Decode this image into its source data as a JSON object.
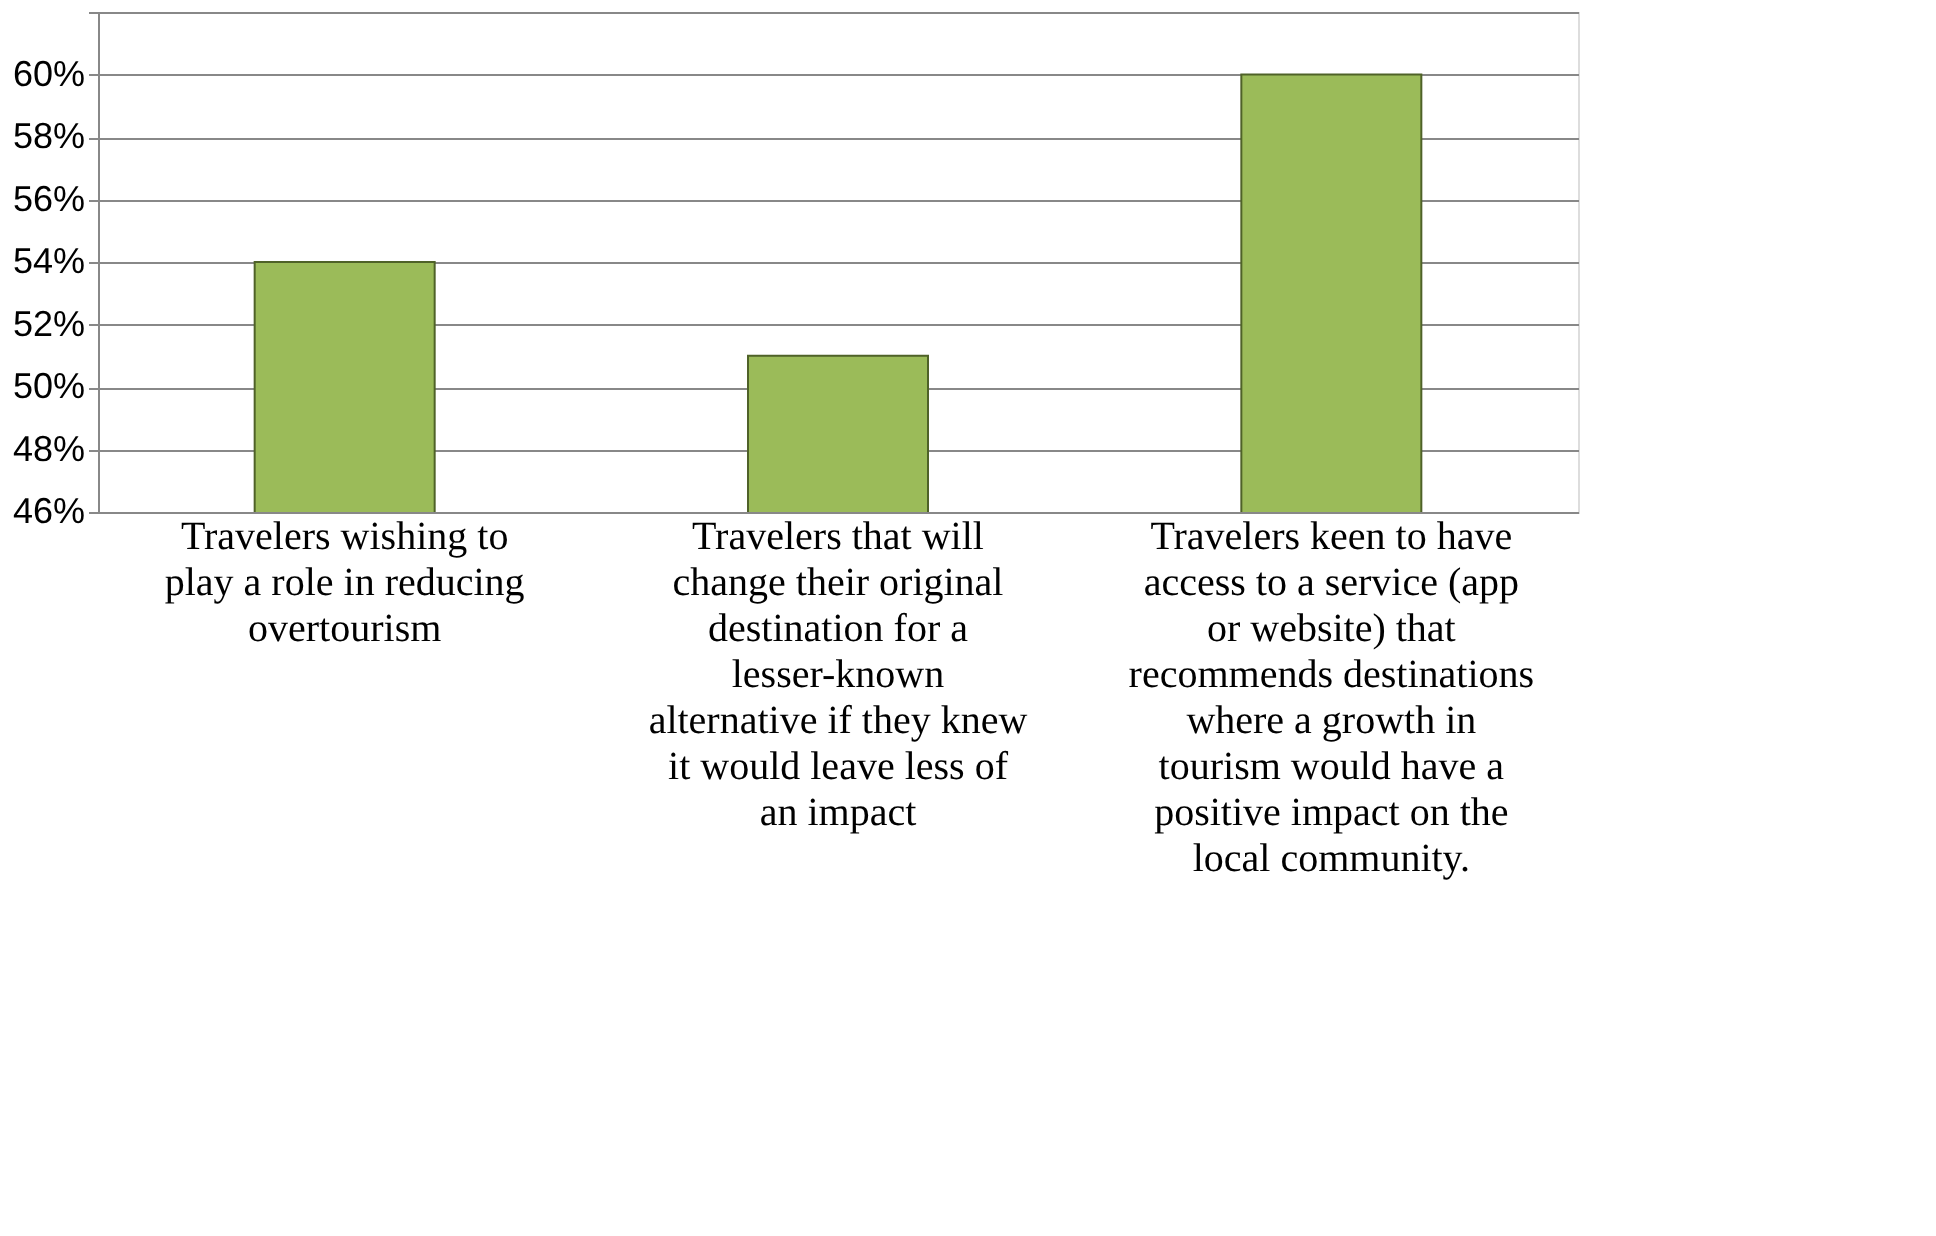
{
  "chart_data": {
    "type": "bar",
    "categories": [
      "Travelers wishing to play a role in reducing overtourism",
      "Travelers that will change their original destination for a lesser-known  alternative if they knew it would leave less of an impact",
      "Travelers keen to have access to a service (app or website) that recommends destinations where a growth in tourism would have a positive impact on the local community."
    ],
    "values": [
      54,
      51,
      60
    ],
    "color": "#9bbb59",
    "ylim": [
      46,
      62
    ],
    "yticks": [
      {
        "value": 46,
        "label": "46%"
      },
      {
        "value": 48,
        "label": "48%"
      },
      {
        "value": 50,
        "label": "50%"
      },
      {
        "value": 52,
        "label": "52%"
      },
      {
        "value": 54,
        "label": "54%"
      },
      {
        "value": 56,
        "label": "56%"
      },
      {
        "value": 58,
        "label": "58%"
      },
      {
        "value": 60,
        "label": "60%"
      },
      {
        "value": 62,
        "label": null
      }
    ],
    "grid": "y"
  }
}
